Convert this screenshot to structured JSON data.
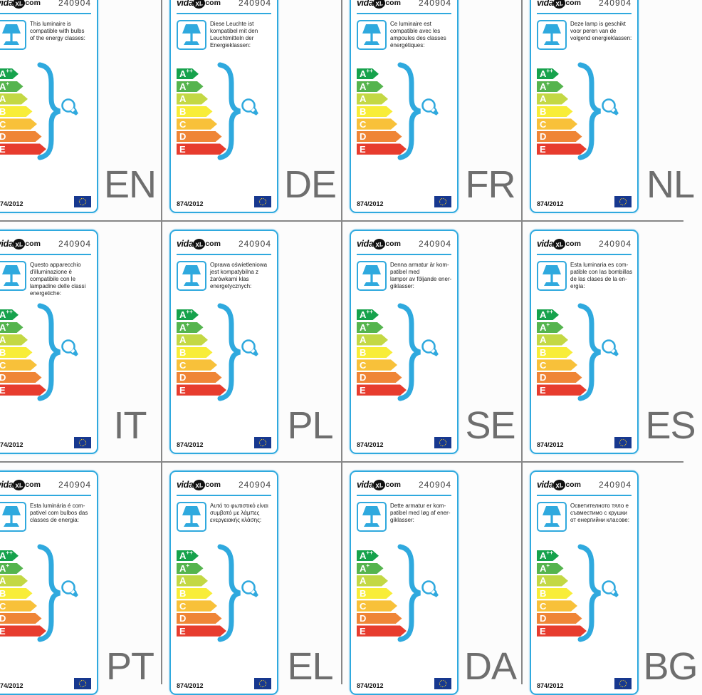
{
  "shared": {
    "brand": {
      "prefix": "vida",
      "mark": "XL",
      "suffix": ".com"
    },
    "product_number": "240904",
    "regulation": "874/2012"
  },
  "energy_classes": [
    {
      "letter": "A",
      "sup": "++",
      "color": "#16a24c"
    },
    {
      "letter": "A",
      "sup": "+",
      "color": "#55b44e"
    },
    {
      "letter": "A",
      "sup": "",
      "color": "#c3d844"
    },
    {
      "letter": "B",
      "sup": "",
      "color": "#f8ed38"
    },
    {
      "letter": "C",
      "sup": "",
      "color": "#f8c13a"
    },
    {
      "letter": "D",
      "sup": "",
      "color": "#ef8536"
    },
    {
      "letter": "E",
      "sup": "",
      "color": "#e73c2e"
    }
  ],
  "labels": [
    {
      "code": "EN",
      "text": "This luminaire is\ncompatible with bulbs\nof the energy classes:"
    },
    {
      "code": "DE",
      "text": "Diese Leuchte ist\nkompatibel mit den\nLeuchtmitteln der\nEnergieklassen:"
    },
    {
      "code": "FR",
      "text": "Ce luminaire est\ncompatible avec les\nampoules des classes\nénergétiques:"
    },
    {
      "code": "NL",
      "text": "Deze lamp is geschikt\nvoor peren van de\nvolgend energieklassen:"
    },
    {
      "code": "IT",
      "text": "Questo apparecchio\nd'illuminazione è\ncompatibile con le\nlampadine delle classi\nenergetiche:"
    },
    {
      "code": "PL",
      "text": "Oprawa oświetleniowa\njest kompatybilna z\nżarówkami klas\nenergetycznych:"
    },
    {
      "code": "SE",
      "text": "Denna armatur är kom-\npatibel med\nlampor av följande ener-\ngiklasser:"
    },
    {
      "code": "ES",
      "text": "Esta luminaria es com-\npatible con las bombillas\nde las clases de la en-\nergía:"
    },
    {
      "code": "PT",
      "text": "Esta luminária é com-\npativel com bulbos das\nclasses de energia:"
    },
    {
      "code": "EL",
      "text": "Αυτό το φωτιστικό είναι\nσυμβατό με λάμπες\nενεργειακής κλάσης:"
    },
    {
      "code": "DA",
      "text": "Dette armatur er kom-\npatibel med løg af ener-\ngiklasser:"
    },
    {
      "code": "BG",
      "text": "Осветителното тяло е\nсъвместимо с крушки\nот енергийни класове:"
    }
  ],
  "icons": {
    "lamp": "table-lamp-icon",
    "bulb": "light-bulb-icon",
    "flag": "eu-flag-icon",
    "brace": "curly-brace"
  },
  "colors": {
    "card_border": "#2fa9de",
    "accent_blue": "#2fa9de",
    "grid_line": "#878787",
    "eu_flag_blue": "#17388f",
    "eu_flag_stars": "#ffd21c",
    "language_code_gray": "#6e6e6e"
  }
}
